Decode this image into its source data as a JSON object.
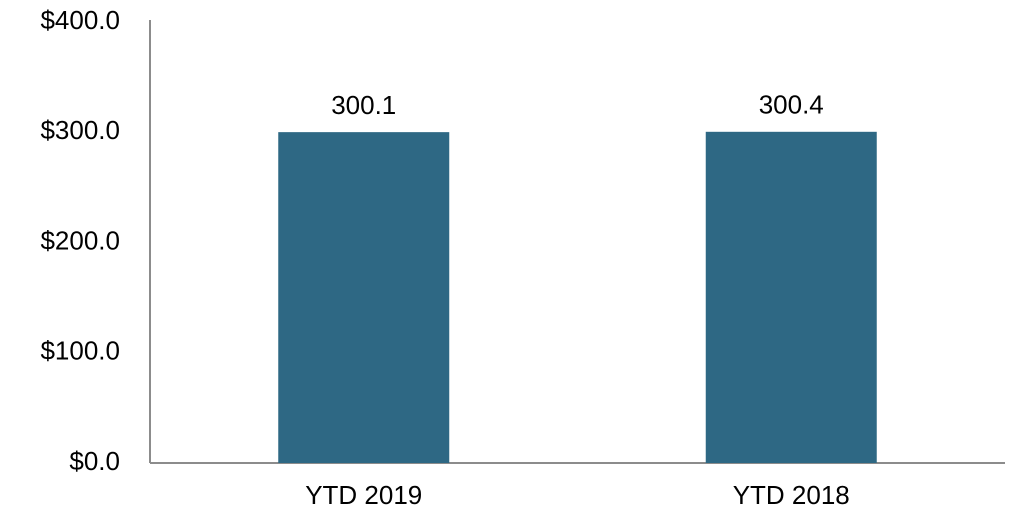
{
  "chart_data": {
    "type": "bar",
    "categories": [
      "YTD 2019",
      "YTD 2018"
    ],
    "values": [
      300.1,
      300.4
    ],
    "color": "#2e6884",
    "ylim": [
      0,
      400
    ],
    "yticks": [
      {
        "value": 0,
        "label": "$0.0"
      },
      {
        "value": 100,
        "label": "$100.0"
      },
      {
        "value": 200,
        "label": "$200.0"
      },
      {
        "value": 300,
        "label": "$300.0"
      },
      {
        "value": 400,
        "label": "$400.0"
      }
    ],
    "grid": false
  }
}
